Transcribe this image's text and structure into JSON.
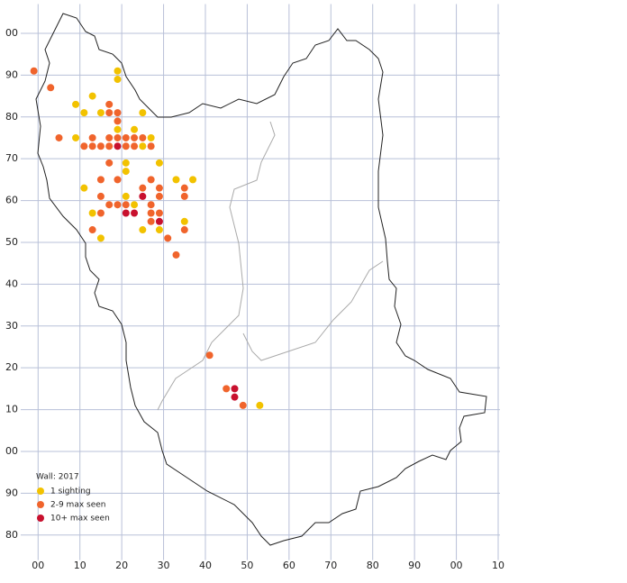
{
  "chart_data": {
    "type": "scatter",
    "legend_title": "Wall:  2017",
    "xlim": [
      -2,
      110
    ],
    "ylim": [
      -26,
      107
    ],
    "xticks": [
      {
        "value": 0,
        "label": "00"
      },
      10,
      20,
      30,
      40,
      50,
      60,
      70,
      80,
      90,
      {
        "value": 100,
        "label": "00"
      },
      {
        "value": 110,
        "label": "10"
      }
    ],
    "yticks": [
      {
        "value": 100,
        "label": "00"
      },
      90,
      80,
      70,
      60,
      50,
      40,
      30,
      20,
      10,
      {
        "value": 0,
        "label": "00"
      },
      {
        "value": -10,
        "label": "90"
      },
      {
        "value": -20,
        "label": "80"
      }
    ],
    "grid": true,
    "legend": "bottom-left",
    "series": [
      {
        "name": "1 sighting",
        "color": "#f2c200",
        "x": [
          19,
          19,
          9,
          11,
          13,
          15,
          25,
          9,
          27,
          23,
          19,
          25,
          21,
          29,
          21,
          11,
          33,
          37,
          21,
          23,
          13,
          35,
          25,
          29,
          15,
          53
        ],
        "values": [
          91,
          89,
          83,
          81,
          85,
          81,
          81,
          75,
          75,
          77,
          77,
          73,
          69,
          69,
          67,
          63,
          65,
          65,
          61,
          59,
          57,
          55,
          53,
          53,
          51,
          11
        ]
      },
      {
        "name": "2-9 max seen",
        "color": "#f0642c",
        "x": [
          -1,
          3,
          17,
          17,
          19,
          19,
          5,
          13,
          17,
          19,
          21,
          23,
          25,
          11,
          13,
          15,
          17,
          21,
          23,
          27,
          17,
          15,
          19,
          27,
          25,
          29,
          35,
          15,
          29,
          35,
          17,
          19,
          21,
          27,
          15,
          27,
          29,
          27,
          13,
          35,
          31,
          33,
          41,
          45,
          49
        ],
        "values": [
          91,
          87,
          83,
          81,
          81,
          79,
          75,
          75,
          75,
          75,
          75,
          75,
          75,
          73,
          73,
          73,
          73,
          73,
          73,
          73,
          69,
          65,
          65,
          65,
          63,
          63,
          63,
          61,
          61,
          61,
          59,
          59,
          59,
          59,
          57,
          57,
          57,
          55,
          53,
          53,
          51,
          47,
          23,
          15,
          11
        ]
      },
      {
        "name": "10+ max seen",
        "color": "#c8102e",
        "x": [
          19,
          25,
          21,
          23,
          29,
          47,
          47
        ],
        "values": [
          73,
          61,
          57,
          57,
          55,
          15,
          13
        ]
      }
    ]
  }
}
